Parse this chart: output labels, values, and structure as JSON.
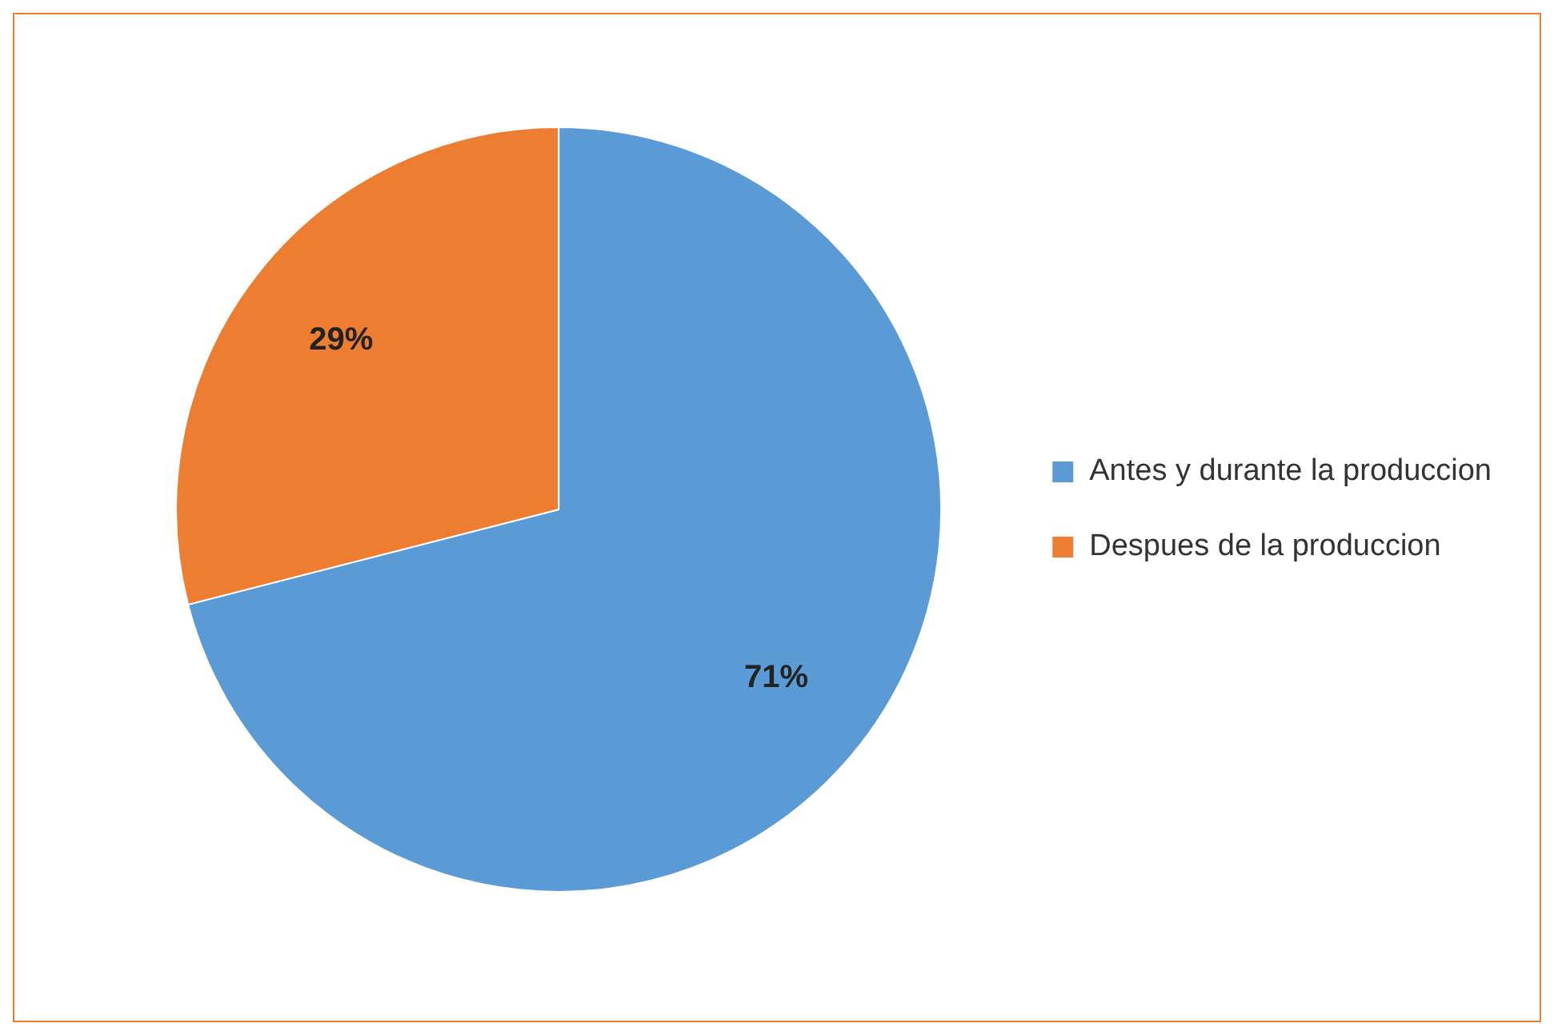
{
  "chart_data": {
    "type": "pie",
    "categories": [
      "Antes y durante la produccion",
      "Despues de la produccion"
    ],
    "values": [
      71,
      29
    ],
    "value_labels": [
      "71%",
      "29%"
    ],
    "colors": [
      "#5b9bd5",
      "#ed7d31"
    ],
    "legend": "right"
  }
}
